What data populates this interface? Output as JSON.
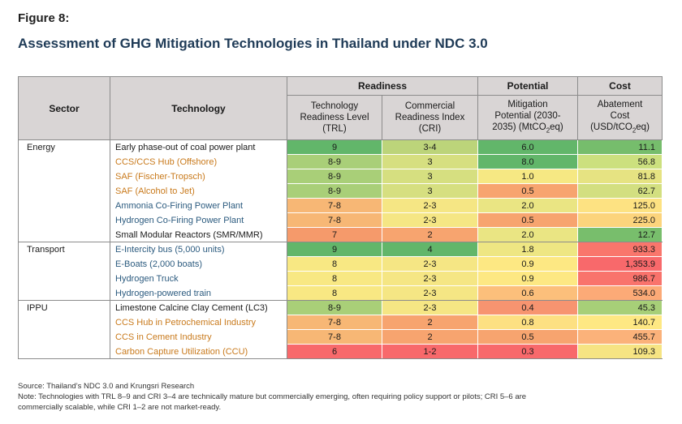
{
  "figure_label": "Figure 8:",
  "title": "Assessment of GHG Mitigation Technologies in Thailand under NDC 3.0",
  "headers": {
    "sector": "Sector",
    "technology": "Technology",
    "readiness": "Readiness",
    "potential": "Potential",
    "cost": "Cost",
    "trl_line1": "Technology",
    "trl_line2": "Readiness Level",
    "trl_line3": "(TRL)",
    "cri_line1": "Commercial",
    "cri_line2": "Readiness Index",
    "cri_line3": "(CRI)",
    "mit_line1": "Mitigation",
    "mit_line2": "Potential (2030-",
    "mit_line3": "2035) (MtCO",
    "mit_sub": "2",
    "mit_tail": "eq)",
    "abate_line1": "Abatement",
    "abate_line2": "Cost",
    "abate_line3": "(USD/tCO",
    "abate_sub": "2",
    "abate_tail": "eq)"
  },
  "rows": [
    {
      "sector": "Energy",
      "technology": "Early phase-out of coal power plant",
      "text_color": "black",
      "trl": "9",
      "cri": "3-4",
      "mitigation": "6.0",
      "cost": "11.1",
      "c_trl": "#62b66a",
      "c_cri": "#bcd47a",
      "c_mit": "#62b66a",
      "c_cost": "#76bd6c"
    },
    {
      "sector": "",
      "technology": "CCS/CCS Hub (Offshore)",
      "text_color": "orange",
      "trl": "8-9",
      "cri": "3",
      "mitigation": "8.0",
      "cost": "56.8",
      "c_trl": "#a9cf78",
      "c_cri": "#d6df80",
      "c_mit": "#62b66a",
      "c_cost": "#cce07e"
    },
    {
      "sector": "",
      "technology": "SAF (Fischer-Tropsch)",
      "text_color": "orange",
      "trl": "8-9",
      "cri": "3",
      "mitigation": "1.0",
      "cost": "81.8",
      "c_trl": "#a9cf78",
      "c_cri": "#d6df80",
      "c_mit": "#f6e883",
      "c_cost": "#e6e382"
    },
    {
      "sector": "",
      "technology": "SAF (Alcohol to Jet)",
      "text_color": "orange",
      "trl": "8-9",
      "cri": "3",
      "mitigation": "0.5",
      "cost": "62.7",
      "c_trl": "#a9cf78",
      "c_cri": "#d6df80",
      "c_mit": "#f7a46f",
      "c_cost": "#d3df80"
    },
    {
      "sector": "",
      "technology": "Ammonia Co-Firing Power Plant",
      "text_color": "blue",
      "trl": "7-8",
      "cri": "2-3",
      "mitigation": "2.0",
      "cost": "125.0",
      "c_trl": "#f7b775",
      "c_cri": "#f5e684",
      "c_mit": "#eae583",
      "c_cost": "#fde282"
    },
    {
      "sector": "",
      "technology": "Hydrogen Co-Firing Power Plant",
      "text_color": "blue",
      "trl": "7-8",
      "cri": "2-3",
      "mitigation": "0.5",
      "cost": "225.0",
      "c_trl": "#f7b775",
      "c_cri": "#f5e684",
      "c_mit": "#f7a46f",
      "c_cost": "#fcd47c"
    },
    {
      "sector": "",
      "technology": "Small Modular Reactors (SMR/MMR)",
      "text_color": "black",
      "trl": "7",
      "cri": "2",
      "mitigation": "2.0",
      "cost": "12.7",
      "c_trl": "#f59a6b",
      "c_cri": "#f7a46f",
      "c_mit": "#eae583",
      "c_cost": "#78be6c"
    },
    {
      "sector": "Transport",
      "technology": "E-Intercity bus (5,000 units)",
      "text_color": "blue",
      "trl": "9",
      "cri": "4",
      "mitigation": "1.8",
      "cost": "933.3",
      "c_trl": "#62b66a",
      "c_cri": "#62b66a",
      "c_mit": "#eee683",
      "c_cost": "#f9766c"
    },
    {
      "sector": "",
      "technology": "E-Boats (2,000 boats)",
      "text_color": "blue",
      "trl": "8",
      "cri": "2-3",
      "mitigation": "0.9",
      "cost": "1,353.9",
      "c_trl": "#f8e883",
      "c_cri": "#f5e684",
      "c_mit": "#fde883",
      "c_cost": "#f8696b"
    },
    {
      "sector": "",
      "technology": "Hydrogen Truck",
      "text_color": "blue",
      "trl": "8",
      "cri": "2-3",
      "mitigation": "0.9",
      "cost": "986.7",
      "c_trl": "#f8e883",
      "c_cri": "#f5e684",
      "c_mit": "#fde883",
      "c_cost": "#f9736c"
    },
    {
      "sector": "",
      "technology": "Hydrogen-powered train",
      "text_color": "blue",
      "trl": "8",
      "cri": "2-3",
      "mitigation": "0.6",
      "cost": "534.0",
      "c_trl": "#f8e883",
      "c_cri": "#f5e684",
      "c_mit": "#fcbf7b",
      "c_cost": "#fcaa77"
    },
    {
      "sector": "IPPU",
      "technology": "Limestone Calcine Clay Cement (LC3)",
      "text_color": "black",
      "trl": "8-9",
      "cri": "2-3",
      "mitigation": "0.4",
      "cost": "45.3",
      "c_trl": "#a9cf78",
      "c_cri": "#f5e684",
      "c_mit": "#f79470",
      "c_cost": "#a7cf78"
    },
    {
      "sector": "",
      "technology": "CCS Hub in Petrochemical Industry",
      "text_color": "orange",
      "trl": "7-8",
      "cri": "2",
      "mitigation": "0.8",
      "cost": "140.7",
      "c_trl": "#f7b775",
      "c_cri": "#f7a46f",
      "c_mit": "#fde082",
      "c_cost": "#fee883"
    },
    {
      "sector": "",
      "technology": "CCS in Cement Industry",
      "text_color": "orange",
      "trl": "7-8",
      "cri": "2",
      "mitigation": "0.5",
      "cost": "455.7",
      "c_trl": "#f7b775",
      "c_cri": "#f7a46f",
      "c_mit": "#f7a46f",
      "c_cost": "#fbb27a"
    },
    {
      "sector": "",
      "technology": "Carbon Capture Utilization (CCU)",
      "text_color": "orange",
      "trl": "6",
      "cri": "1-2",
      "mitigation": "0.3",
      "cost": "109.3",
      "c_trl": "#f8696b",
      "c_cri": "#f8696b",
      "c_mit": "#f8696b",
      "c_cost": "#f6e483"
    }
  ],
  "notes": {
    "source": "Source: Thailand’s NDC 3.0 and Krungsri Research",
    "note_line1": "Note: Technologies with TRL 8–9 and CRI 3–4 are technically mature but commercially emerging, often requiring policy support or pilots; CRI 5–6 are",
    "note_line2": "commercially scalable, while CRI 1–2 are not market-ready."
  }
}
